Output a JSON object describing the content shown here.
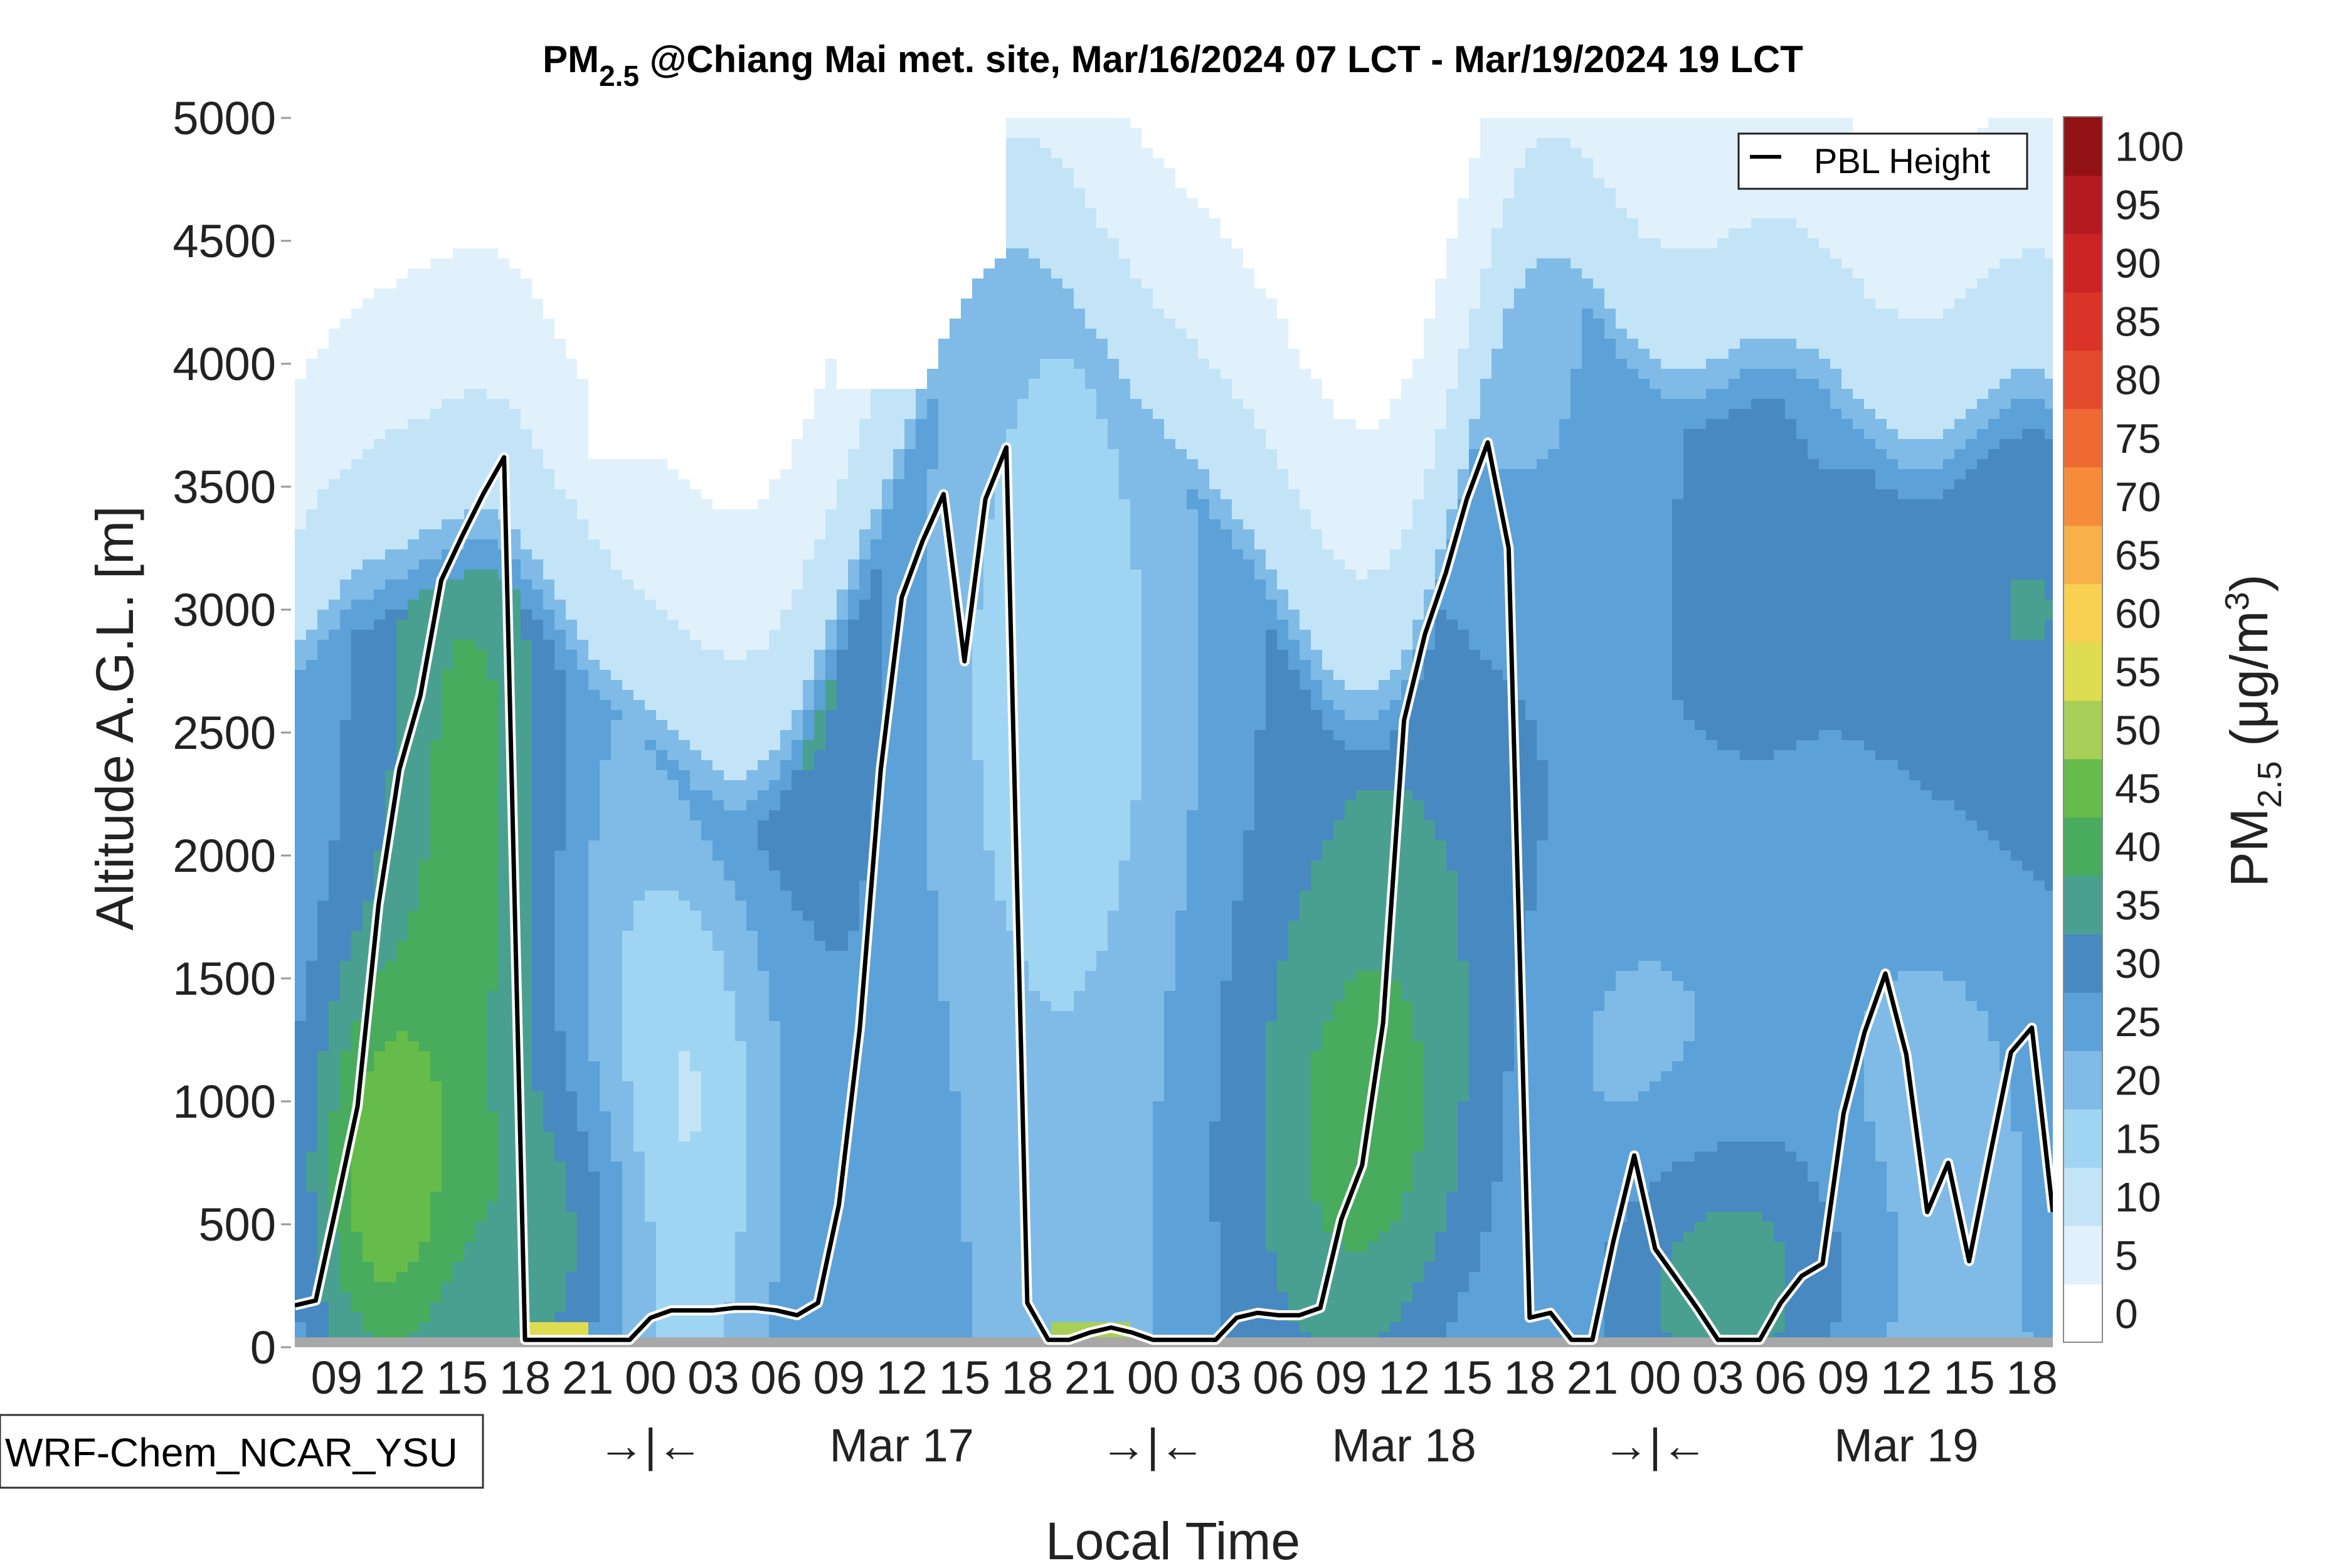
{
  "chart_data": {
    "type": "contour",
    "title_main": "PM",
    "title_sub": "2.5",
    "title_rest": " @Chiang Mai met. site, Mar/16/2024 07 LCT - Mar/19/2024 19 LCT",
    "xlabel": "Local Time",
    "ylabel": "Altitude A.G.L. [m]",
    "ylim": [
      0,
      5000
    ],
    "yticks": [
      0,
      500,
      1000,
      1500,
      2000,
      2500,
      3000,
      3500,
      4000,
      4500,
      5000
    ],
    "xlim_hours": [
      0,
      84
    ],
    "hour_ticks": [
      {
        "h": 2,
        "label": "09"
      },
      {
        "h": 5,
        "label": "12"
      },
      {
        "h": 8,
        "label": "15"
      },
      {
        "h": 11,
        "label": "18"
      },
      {
        "h": 14,
        "label": "21"
      },
      {
        "h": 17,
        "label": "00"
      },
      {
        "h": 20,
        "label": "03"
      },
      {
        "h": 23,
        "label": "06"
      },
      {
        "h": 26,
        "label": "09"
      },
      {
        "h": 29,
        "label": "12"
      },
      {
        "h": 32,
        "label": "15"
      },
      {
        "h": 35,
        "label": "18"
      },
      {
        "h": 38,
        "label": "21"
      },
      {
        "h": 41,
        "label": "00"
      },
      {
        "h": 44,
        "label": "03"
      },
      {
        "h": 47,
        "label": "06"
      },
      {
        "h": 50,
        "label": "09"
      },
      {
        "h": 53,
        "label": "12"
      },
      {
        "h": 56,
        "label": "15"
      },
      {
        "h": 59,
        "label": "18"
      },
      {
        "h": 62,
        "label": "21"
      },
      {
        "h": 65,
        "label": "00"
      },
      {
        "h": 68,
        "label": "03"
      },
      {
        "h": 71,
        "label": "06"
      },
      {
        "h": 74,
        "label": "09"
      },
      {
        "h": 77,
        "label": "12"
      },
      {
        "h": 80,
        "label": "15"
      },
      {
        "h": 83,
        "label": "18"
      }
    ],
    "day_labels": [
      {
        "h": 17,
        "label": "→|←"
      },
      {
        "h": 29,
        "label": "Mar 17"
      },
      {
        "h": 41,
        "label": "→|←"
      },
      {
        "h": 53,
        "label": "Mar 18"
      },
      {
        "h": 65,
        "label": "→|←"
      },
      {
        "h": 77,
        "label": "Mar 19"
      }
    ],
    "pbl_series": {
      "name": "PBL Height",
      "x": [
        0,
        1,
        2,
        3,
        4,
        5,
        6,
        7,
        8,
        9,
        10,
        11,
        12,
        13,
        14,
        15,
        16,
        17,
        18,
        19,
        20,
        21,
        22,
        23,
        24,
        25,
        26,
        27,
        28,
        29,
        30,
        31,
        32,
        33,
        34,
        35,
        36,
        37,
        38,
        39,
        40,
        41,
        42,
        43,
        44,
        45,
        46,
        47,
        48,
        49,
        50,
        51,
        52,
        53,
        54,
        55,
        56,
        57,
        58,
        59,
        60,
        61,
        62,
        63,
        64,
        65,
        66,
        67,
        68,
        69,
        70,
        71,
        72,
        73,
        74,
        75,
        76,
        77,
        78,
        79,
        80,
        81,
        82,
        83,
        84
      ],
      "y": [
        170,
        190,
        580,
        980,
        1800,
        2350,
        2650,
        3120,
        3300,
        3470,
        3620,
        30,
        30,
        30,
        30,
        30,
        30,
        120,
        150,
        150,
        150,
        160,
        160,
        150,
        130,
        180,
        580,
        1300,
        2350,
        3050,
        3280,
        3470,
        2790,
        3450,
        3660,
        180,
        30,
        30,
        60,
        80,
        60,
        30,
        30,
        30,
        30,
        120,
        140,
        130,
        130,
        160,
        520,
        740,
        1320,
        2550,
        2900,
        3150,
        3450,
        3680,
        3250,
        120,
        140,
        30,
        30,
        430,
        780,
        400,
        280,
        160,
        30,
        30,
        30,
        180,
        290,
        340,
        950,
        1280,
        1520,
        1190,
        550,
        750,
        350,
        780,
        1200,
        1300,
        550
      ]
    },
    "colorbar": {
      "label_main": "PM",
      "label_sub": "2.5",
      "label_unit": " (μg/m",
      "label_sup": "3",
      "label_close": ")",
      "tick_labels": [
        "0",
        "5",
        "10",
        "15",
        "20",
        "25",
        "30",
        "35",
        "40",
        "45",
        "50",
        "55",
        "60",
        "65",
        "70",
        "75",
        "80",
        "85",
        "90",
        "95",
        "100"
      ],
      "colors": [
        "#ffffff",
        "#e1f1fb",
        "#c3e4f7",
        "#9fd5f2",
        "#7fbbe6",
        "#5ca1d8",
        "#4789c0",
        "#4aa090",
        "#48ab5e",
        "#66bc4a",
        "#a8cf58",
        "#dedc50",
        "#f8d052",
        "#f7b04a",
        "#f68c3a",
        "#ef6a32",
        "#e34a2c",
        "#da3328",
        "#cc2325",
        "#b41a20",
        "#921115"
      ]
    },
    "legend": {
      "label": "PBL Height",
      "position": "top-right"
    },
    "model_label": "WRF-Chem_NCAR_YSU"
  }
}
